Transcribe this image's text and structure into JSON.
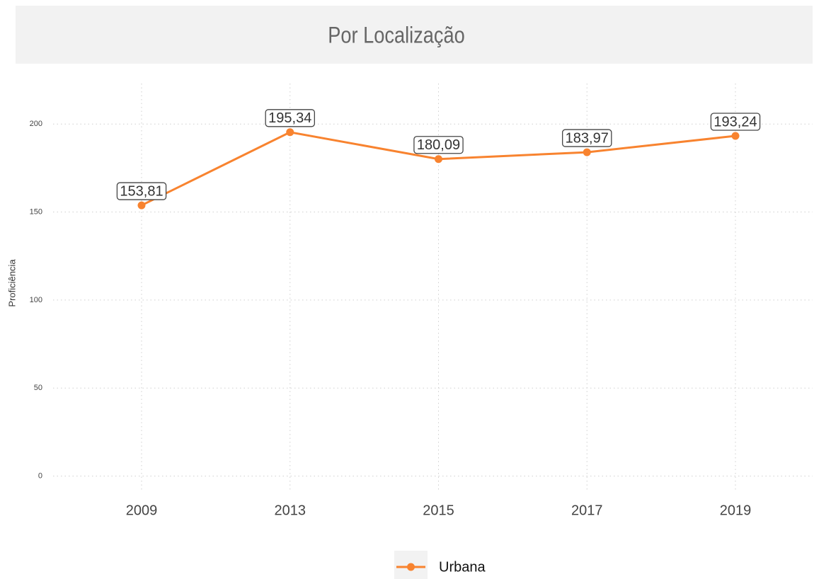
{
  "chart_data": {
    "type": "line",
    "title": "Por Localização",
    "ylabel": "Proficiência",
    "categories": [
      "2009",
      "2013",
      "2015",
      "2017",
      "2019"
    ],
    "series": [
      {
        "name": "Urbana",
        "color": "#f8832f",
        "values": [
          153.81,
          195.34,
          180.09,
          183.97,
          193.24
        ],
        "value_labels": [
          "153,81",
          "195,34",
          "180,09",
          "183,97",
          "193,24"
        ]
      }
    ],
    "ylim": [
      -9,
      223
    ],
    "yticks": [
      0,
      50,
      100,
      150,
      200
    ],
    "grid": true,
    "legend": "bottom"
  }
}
